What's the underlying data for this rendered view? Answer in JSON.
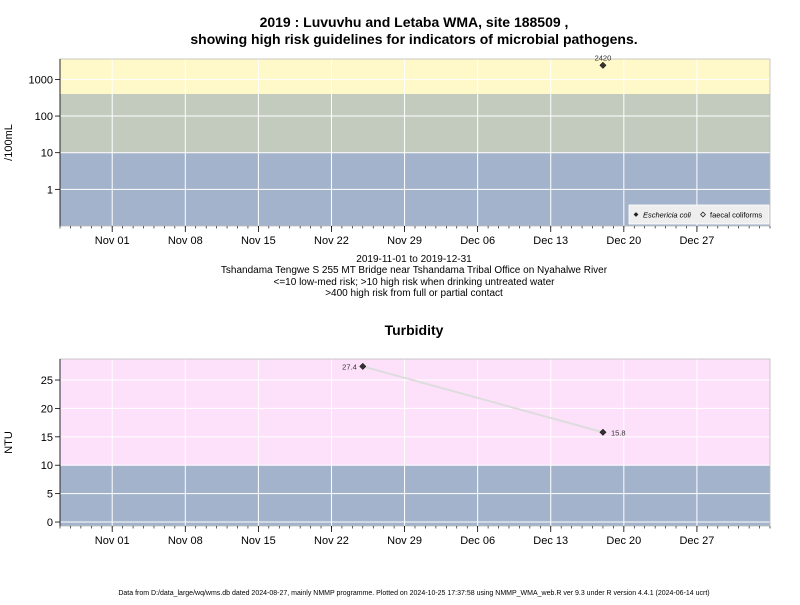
{
  "page": {
    "title_line1": "2019 : Luvuvhu and Letaba WMA, site 188509 ,",
    "title_line2": "showing high risk guidelines for indicators of microbial pathogens.",
    "caption_lines": [
      "2019-11-01 to 2019-12-31",
      "Tshandama Tengwe S 255 MT Bridge near Tshandama Tribal Office on Nyahalwe River",
      "<=10 low-med risk; >10 high risk when drinking untreated water",
      ">400 high risk from full or partial contact"
    ],
    "footer": "Data from D:/data_large/wq/wms.db dated 2024-08-27, mainly NMMP programme. Plotted on 2024-10-25 17:37:58 using NMMP_WMA_web.R ver 9.3 under R version 4.4.1 (2024-06-14 ucrt)"
  },
  "colors": {
    "band_blue": "#a3b3cb",
    "band_grey": "#c2cbbe",
    "band_yellow": "#fff8c8",
    "band_pink": "#fde0fa",
    "grid": "#ffffff",
    "line": "#dddddd",
    "point": "#333333"
  },
  "chart_data": [
    {
      "type": "scatter",
      "title": "",
      "ylabel": "/100mL",
      "xlabel": "",
      "y_scale": "log",
      "xlim": [
        "2019-10-27",
        "2020-01-03"
      ],
      "ylim": [
        0.1,
        3600
      ],
      "x_ticks": [
        "Nov 01",
        "Nov 08",
        "Nov 15",
        "Nov 22",
        "Nov 29",
        "Dec 06",
        "Dec 13",
        "Dec 20",
        "Dec 27"
      ],
      "x_tick_dates": [
        "2019-11-01",
        "2019-11-08",
        "2019-11-15",
        "2019-11-22",
        "2019-11-29",
        "2019-12-06",
        "2019-12-13",
        "2019-12-20",
        "2019-12-27"
      ],
      "y_ticks": [
        "1",
        "10",
        "100",
        "1000"
      ],
      "y_tick_values": [
        1,
        10,
        100,
        1000
      ],
      "bands": [
        {
          "from": 0.1,
          "to": 10,
          "color_key": "band_blue"
        },
        {
          "from": 10,
          "to": 400,
          "color_key": "band_grey"
        },
        {
          "from": 400,
          "to": 3600,
          "color_key": "band_yellow"
        }
      ],
      "series": [
        {
          "name": "Eschericia coli",
          "marker": "diamond-filled",
          "points": [
            {
              "x": "2019-12-18",
              "y": 2420,
              "label": "2420"
            }
          ]
        },
        {
          "name": "faecal coliforms",
          "marker": "diamond-open",
          "points": []
        }
      ],
      "grid": true,
      "legend": "bottom-right"
    },
    {
      "type": "line",
      "title": "Turbidity",
      "ylabel": "NTU",
      "xlabel": "",
      "y_scale": "linear",
      "xlim": [
        "2019-10-27",
        "2020-01-03"
      ],
      "ylim": [
        -0.7,
        28.7
      ],
      "x_ticks": [
        "Nov 01",
        "Nov 08",
        "Nov 15",
        "Nov 22",
        "Nov 29",
        "Dec 06",
        "Dec 13",
        "Dec 20",
        "Dec 27"
      ],
      "x_tick_dates": [
        "2019-11-01",
        "2019-11-08",
        "2019-11-15",
        "2019-11-22",
        "2019-11-29",
        "2019-12-06",
        "2019-12-13",
        "2019-12-20",
        "2019-12-27"
      ],
      "y_ticks": [
        "0",
        "5",
        "10",
        "15",
        "20",
        "25"
      ],
      "y_tick_values": [
        0,
        5,
        10,
        15,
        20,
        25
      ],
      "bands": [
        {
          "from": -0.7,
          "to": 10,
          "color_key": "band_blue"
        },
        {
          "from": 10,
          "to": 28.7,
          "color_key": "band_pink"
        }
      ],
      "series": [
        {
          "name": "",
          "marker": "diamond-filled",
          "points": [
            {
              "x": "2019-11-25",
              "y": 27.4,
              "label": "27.4"
            },
            {
              "x": "2019-12-18",
              "y": 15.8,
              "label": "15.8"
            }
          ]
        }
      ],
      "grid": true,
      "legend": "none"
    }
  ]
}
